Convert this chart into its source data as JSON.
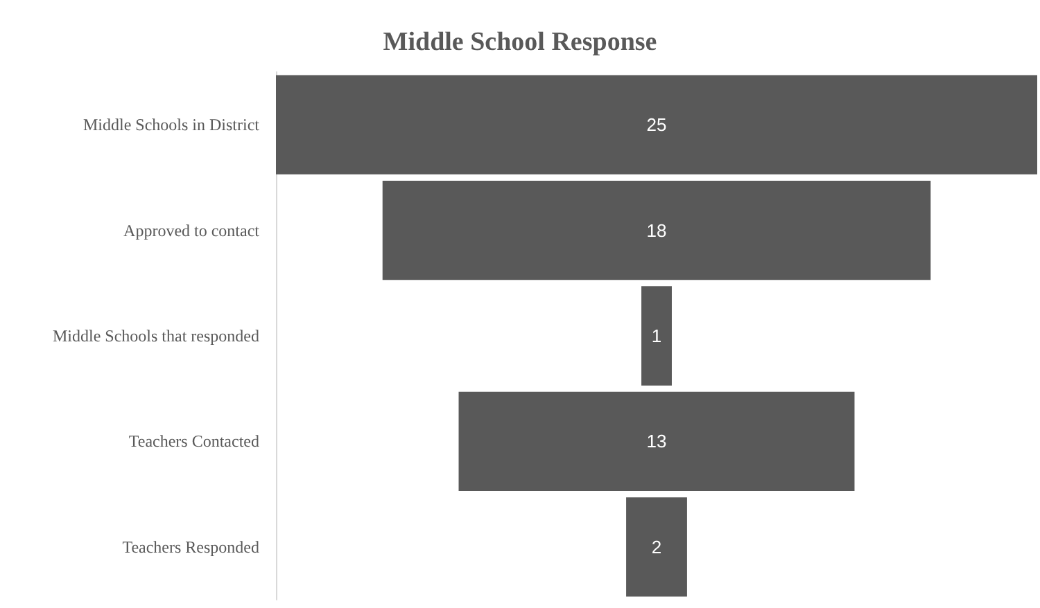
{
  "chart_data": {
    "type": "other",
    "title": "Middle School Response",
    "categories": [
      "Middle Schools in District",
      "Approved to contact",
      "Middle Schools that responded",
      "Teachers Contacted",
      "Teachers Responded"
    ],
    "values": [
      25,
      18,
      1,
      13,
      2
    ],
    "color": "#595959",
    "data_labels": true
  }
}
